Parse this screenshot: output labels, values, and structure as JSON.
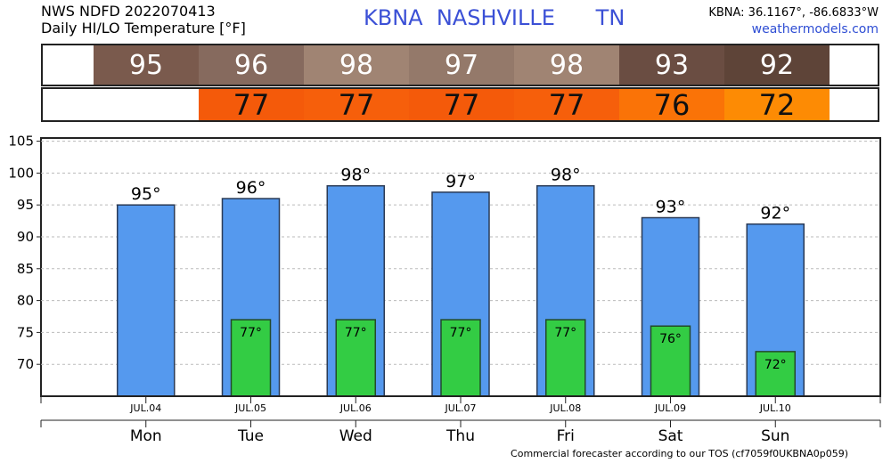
{
  "header": {
    "line1": "NWS NDFD 2022070413",
    "line2": "Daily HI/LO Temperature [°F]",
    "station": "KBNA  NASHVILLE      TN",
    "coords": "KBNA: 36.1167°, -86.6833°W",
    "site": "weathermodels.com"
  },
  "hi_strip": [
    {
      "label": "95",
      "color": "#7a5a4d"
    },
    {
      "label": "96",
      "color": "#866a5e"
    },
    {
      "label": "98",
      "color": "#a08473"
    },
    {
      "label": "97",
      "color": "#94796a"
    },
    {
      "label": "98",
      "color": "#a08473"
    },
    {
      "label": "93",
      "color": "#6a4d42"
    },
    {
      "label": "92",
      "color": "#5e4438"
    }
  ],
  "lo_strip": [
    {
      "label": "77",
      "color": "#f45a0a"
    },
    {
      "label": "77",
      "color": "#f65f0b"
    },
    {
      "label": "77",
      "color": "#f45a0a"
    },
    {
      "label": "77",
      "color": "#f65f0b"
    },
    {
      "label": "76",
      "color": "#fa7307"
    },
    {
      "label": "72",
      "color": "#fd8b04"
    }
  ],
  "chart_data": {
    "type": "bar",
    "categories": [
      "JUL.04",
      "JUL.05",
      "JUL.06",
      "JUL.07",
      "JUL.08",
      "JUL.09",
      "JUL.10"
    ],
    "weekdays": [
      "Mon",
      "Tue",
      "Wed",
      "Thu",
      "Fri",
      "Sat",
      "Sun"
    ],
    "series": [
      {
        "values": [
          95,
          96,
          98,
          97,
          98,
          93,
          92
        ],
        "labels": [
          "95°",
          "96°",
          "98°",
          "97°",
          "98°",
          "93°",
          "92°"
        ],
        "color": "#5599ee"
      },
      {
        "values": [
          null,
          77,
          77,
          77,
          77,
          76,
          72
        ],
        "labels": [
          "",
          "77°",
          "77°",
          "77°",
          "77°",
          "76°",
          "72°"
        ],
        "color": "#33cc44"
      }
    ],
    "ylim": [
      65,
      105.5
    ],
    "yticks": [
      70,
      75,
      80,
      85,
      90,
      95,
      100,
      105
    ],
    "grid": true
  },
  "footer": "Commercial forecaster according to our TOS (cf7059f0UKBNA0p059)"
}
